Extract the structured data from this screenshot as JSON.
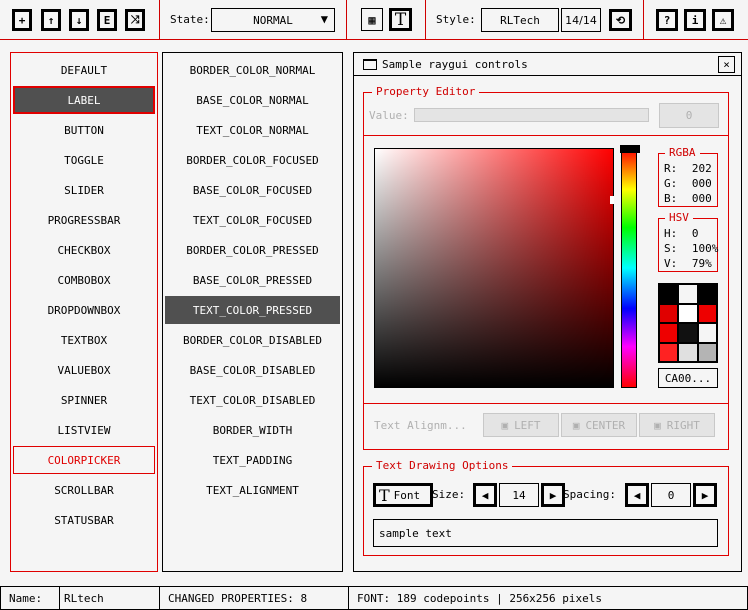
{
  "toolbar": {
    "state_label": "State:",
    "state_value": "NORMAL",
    "style_label": "Style:",
    "style_value": "RLTech",
    "style_count": "14/14",
    "font_icon": "T"
  },
  "controls": [
    "DEFAULT",
    "LABEL",
    "BUTTON",
    "TOGGLE",
    "SLIDER",
    "PROGRESSBAR",
    "CHECKBOX",
    "COMBOBOX",
    "DROPDOWNBOX",
    "TEXTBOX",
    "VALUEBOX",
    "SPINNER",
    "LISTVIEW",
    "COLORPICKER",
    "SCROLLBAR",
    "STATUSBAR"
  ],
  "properties": [
    "BORDER_COLOR_NORMAL",
    "BASE_COLOR_NORMAL",
    "TEXT_COLOR_NORMAL",
    "BORDER_COLOR_FOCUSED",
    "BASE_COLOR_FOCUSED",
    "TEXT_COLOR_FOCUSED",
    "BORDER_COLOR_PRESSED",
    "BASE_COLOR_PRESSED",
    "TEXT_COLOR_PRESSED",
    "BORDER_COLOR_DISABLED",
    "BASE_COLOR_DISABLED",
    "TEXT_COLOR_DISABLED",
    "BORDER_WIDTH",
    "TEXT_PADDING",
    "TEXT_ALIGNMENT"
  ],
  "window": {
    "title": "Sample raygui controls",
    "close": "×"
  },
  "property_editor": {
    "title": "Property Editor",
    "value_label": "Value:",
    "value": "0",
    "rgba": {
      "title": "RGBA",
      "r_label": "R:",
      "r": "202",
      "g_label": "G:",
      "g": "000",
      "b_label": "B:",
      "b": "000"
    },
    "hsv": {
      "title": "HSV",
      "h_label": "H:",
      "h": "0",
      "s_label": "S:",
      "s": "100%",
      "v_label": "V:",
      "v": "79%"
    },
    "hex": "CA00...",
    "selected_color": "#ca0000",
    "palette": [
      "#000000",
      "#f5f5f5",
      "#000000",
      "#e00000",
      "#ffffff",
      "#ee0000",
      "#ee0000",
      "#111111",
      "#f5f5f5",
      "#ff2222",
      "#e0e0e0",
      "#b4b4b4"
    ],
    "align_label": "Text Alignm...",
    "align_left": "LEFT",
    "align_center": "CENTER",
    "align_right": "RIGHT"
  },
  "text_options": {
    "title": "Text Drawing Options",
    "font_button": "Font",
    "size_label": "Size:",
    "size": "14",
    "spacing_label": "Spacing:",
    "spacing": "0",
    "sample": "sample text"
  },
  "status": {
    "name_label": "Name:",
    "name": "RLtech",
    "changed": "CHANGED PROPERTIES: 8",
    "font": "FONT: 189 codepoints | 256x256 pixels"
  },
  "colors": {
    "accent": "#e00000",
    "selected_bg": "#505050"
  }
}
